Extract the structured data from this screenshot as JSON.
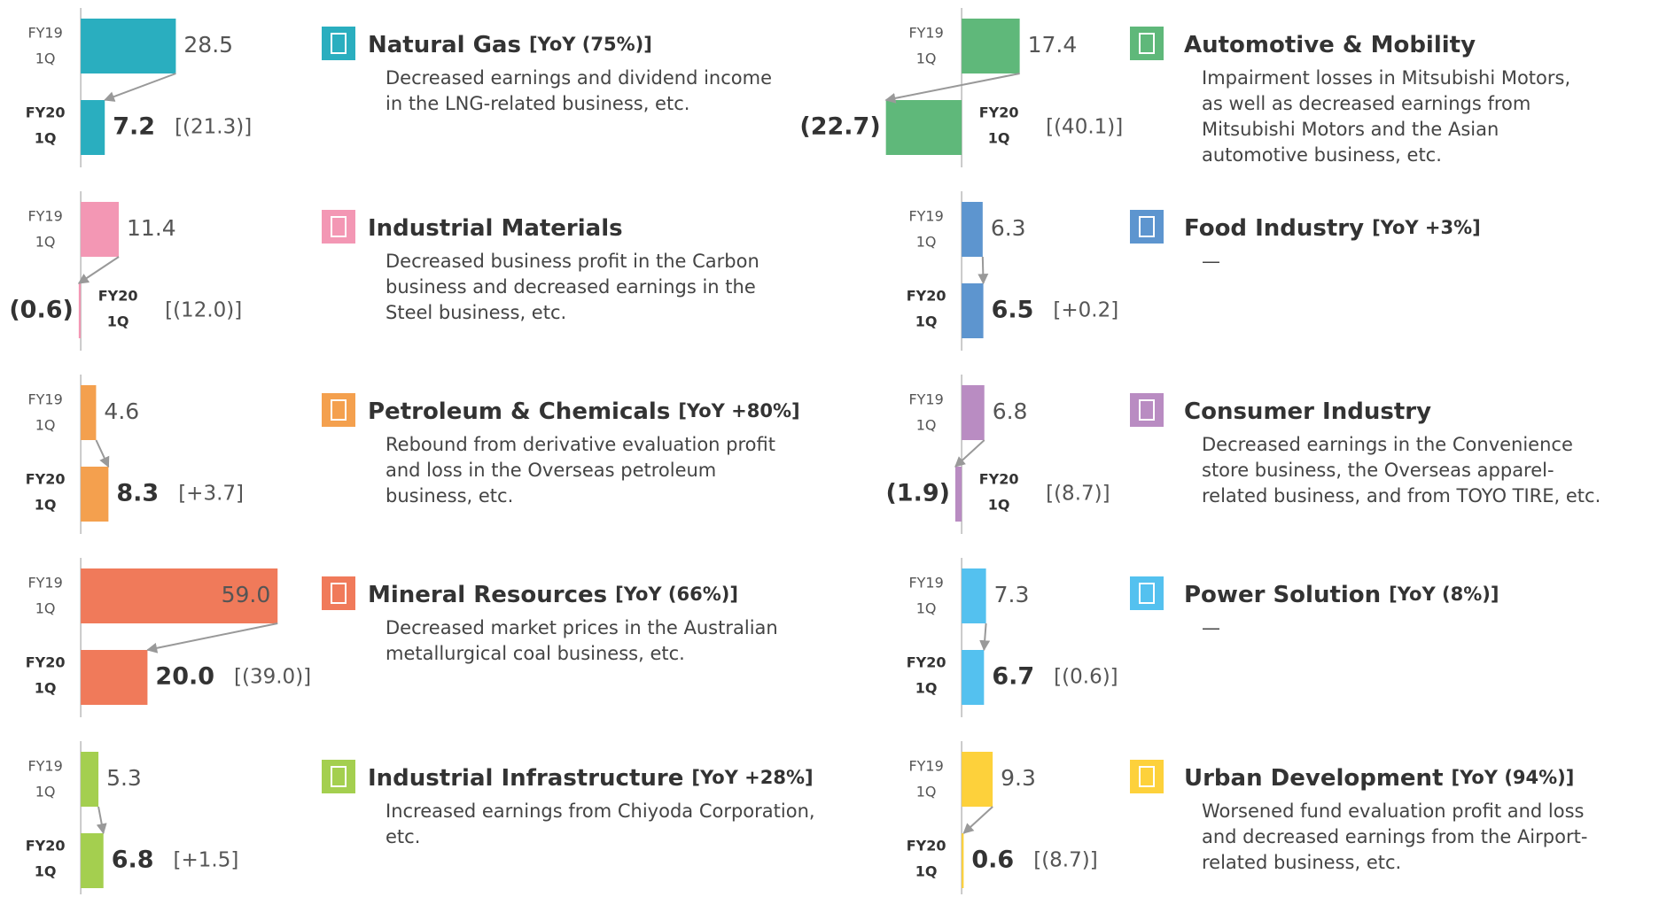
{
  "chart_data": [
    {
      "type": "bar",
      "title": "Natural Gas",
      "yoy": "[YoY (75%)]",
      "description": [
        "Decreased earnings and dividend income",
        "in the LNG-related business, etc."
      ],
      "categories": [
        [
          "FY19",
          "1Q"
        ],
        [
          "FY20",
          "1Q"
        ]
      ],
      "values": [
        28.5,
        7.2
      ],
      "value_labels": [
        "28.5",
        "7.2"
      ],
      "change": "[(21.3)]",
      "color": "#2aaebf",
      "xlim": [
        -25,
        60
      ]
    },
    {
      "type": "bar",
      "title": "Industrial Materials",
      "description": [
        "Decreased business profit in the Carbon",
        "business and decreased earnings in the",
        "Steel business, etc."
      ],
      "categories": [
        [
          "FY19",
          "1Q"
        ],
        [
          "FY20",
          "1Q"
        ]
      ],
      "values": [
        11.4,
        -0.6
      ],
      "value_labels": [
        "11.4",
        "(0.6)"
      ],
      "change": "[(12.0)]",
      "color": "#f397b4",
      "xlim": [
        -25,
        60
      ]
    },
    {
      "type": "bar",
      "title": "Petroleum & Chemicals",
      "yoy": "[YoY +80%]",
      "description": [
        "Rebound from derivative evaluation profit",
        "and loss in the Overseas petroleum",
        "business, etc."
      ],
      "categories": [
        [
          "FY19",
          "1Q"
        ],
        [
          "FY20",
          "1Q"
        ]
      ],
      "values": [
        4.6,
        8.3
      ],
      "value_labels": [
        "4.6",
        "8.3"
      ],
      "change": "[+3.7]",
      "color": "#f4a04e",
      "xlim": [
        -25,
        60
      ]
    },
    {
      "type": "bar",
      "title": "Mineral Resources",
      "yoy": "[YoY (66%)]",
      "description": [
        "Decreased market prices in the Australian",
        "metallurgical coal business, etc."
      ],
      "categories": [
        [
          "FY19",
          "1Q"
        ],
        [
          "FY20",
          "1Q"
        ]
      ],
      "values": [
        59.0,
        20.0
      ],
      "value_labels": [
        "59.0",
        "20.0"
      ],
      "change": "[(39.0)]",
      "color": "#f07a5a",
      "xlim": [
        -25,
        60
      ]
    },
    {
      "type": "bar",
      "title": "Industrial Infrastructure",
      "yoy": "[YoY +28%]",
      "description": [
        "Increased earnings from Chiyoda Corporation,",
        "etc."
      ],
      "categories": [
        [
          "FY19",
          "1Q"
        ],
        [
          "FY20",
          "1Q"
        ]
      ],
      "values": [
        5.3,
        6.8
      ],
      "value_labels": [
        "5.3",
        "6.8"
      ],
      "change": "[+1.5]",
      "color": "#a4cf4f",
      "xlim": [
        -25,
        60
      ]
    },
    {
      "type": "bar",
      "title": "Automotive & Mobility",
      "description": [
        "Impairment losses in Mitsubishi Motors,",
        "as well as decreased earnings from",
        "Mitsubishi Motors and the Asian",
        "automotive business, etc."
      ],
      "categories": [
        [
          "FY19",
          "1Q"
        ],
        [
          "FY20",
          "1Q"
        ]
      ],
      "values": [
        17.4,
        -22.7
      ],
      "value_labels": [
        "17.4",
        "(22.7)"
      ],
      "change": "[(40.1)]",
      "color": "#5fb87a",
      "xlim": [
        -25,
        60
      ]
    },
    {
      "type": "bar",
      "title": "Food Industry",
      "yoy": "[YoY +3%]",
      "description": [
        "—"
      ],
      "categories": [
        [
          "FY19",
          "1Q"
        ],
        [
          "FY20",
          "1Q"
        ]
      ],
      "values": [
        6.3,
        6.5
      ],
      "value_labels": [
        "6.3",
        "6.5"
      ],
      "change": "[+0.2]",
      "color": "#5d95cf",
      "xlim": [
        -25,
        60
      ]
    },
    {
      "type": "bar",
      "title": "Consumer Industry",
      "description": [
        "Decreased earnings in the Convenience",
        "store business, the Overseas apparel-",
        "related business, and from TOYO TIRE, etc."
      ],
      "categories": [
        [
          "FY19",
          "1Q"
        ],
        [
          "FY20",
          "1Q"
        ]
      ],
      "values": [
        6.8,
        -1.9
      ],
      "value_labels": [
        "6.8",
        "(1.9)"
      ],
      "change": "[(8.7)]",
      "color": "#b98cc2",
      "xlim": [
        -25,
        60
      ]
    },
    {
      "type": "bar",
      "title": "Power Solution",
      "yoy": "[YoY (8%)]",
      "description": [
        "—"
      ],
      "categories": [
        [
          "FY19",
          "1Q"
        ],
        [
          "FY20",
          "1Q"
        ]
      ],
      "values": [
        7.3,
        6.7
      ],
      "value_labels": [
        "7.3",
        "6.7"
      ],
      "change": "[(0.6)]",
      "color": "#54c1ef",
      "xlim": [
        -25,
        60
      ]
    },
    {
      "type": "bar",
      "title": "Urban Development",
      "yoy": "[YoY (94%)]",
      "description": [
        "Worsened fund evaluation profit and loss",
        "and decreased earnings from the Airport-",
        "related business, etc."
      ],
      "categories": [
        [
          "FY19",
          "1Q"
        ],
        [
          "FY20",
          "1Q"
        ]
      ],
      "values": [
        9.3,
        0.6
      ],
      "value_labels": [
        "9.3",
        "0.6"
      ],
      "change": "[(8.7)]",
      "color": "#fdd13b",
      "xlim": [
        -25,
        60
      ]
    }
  ]
}
